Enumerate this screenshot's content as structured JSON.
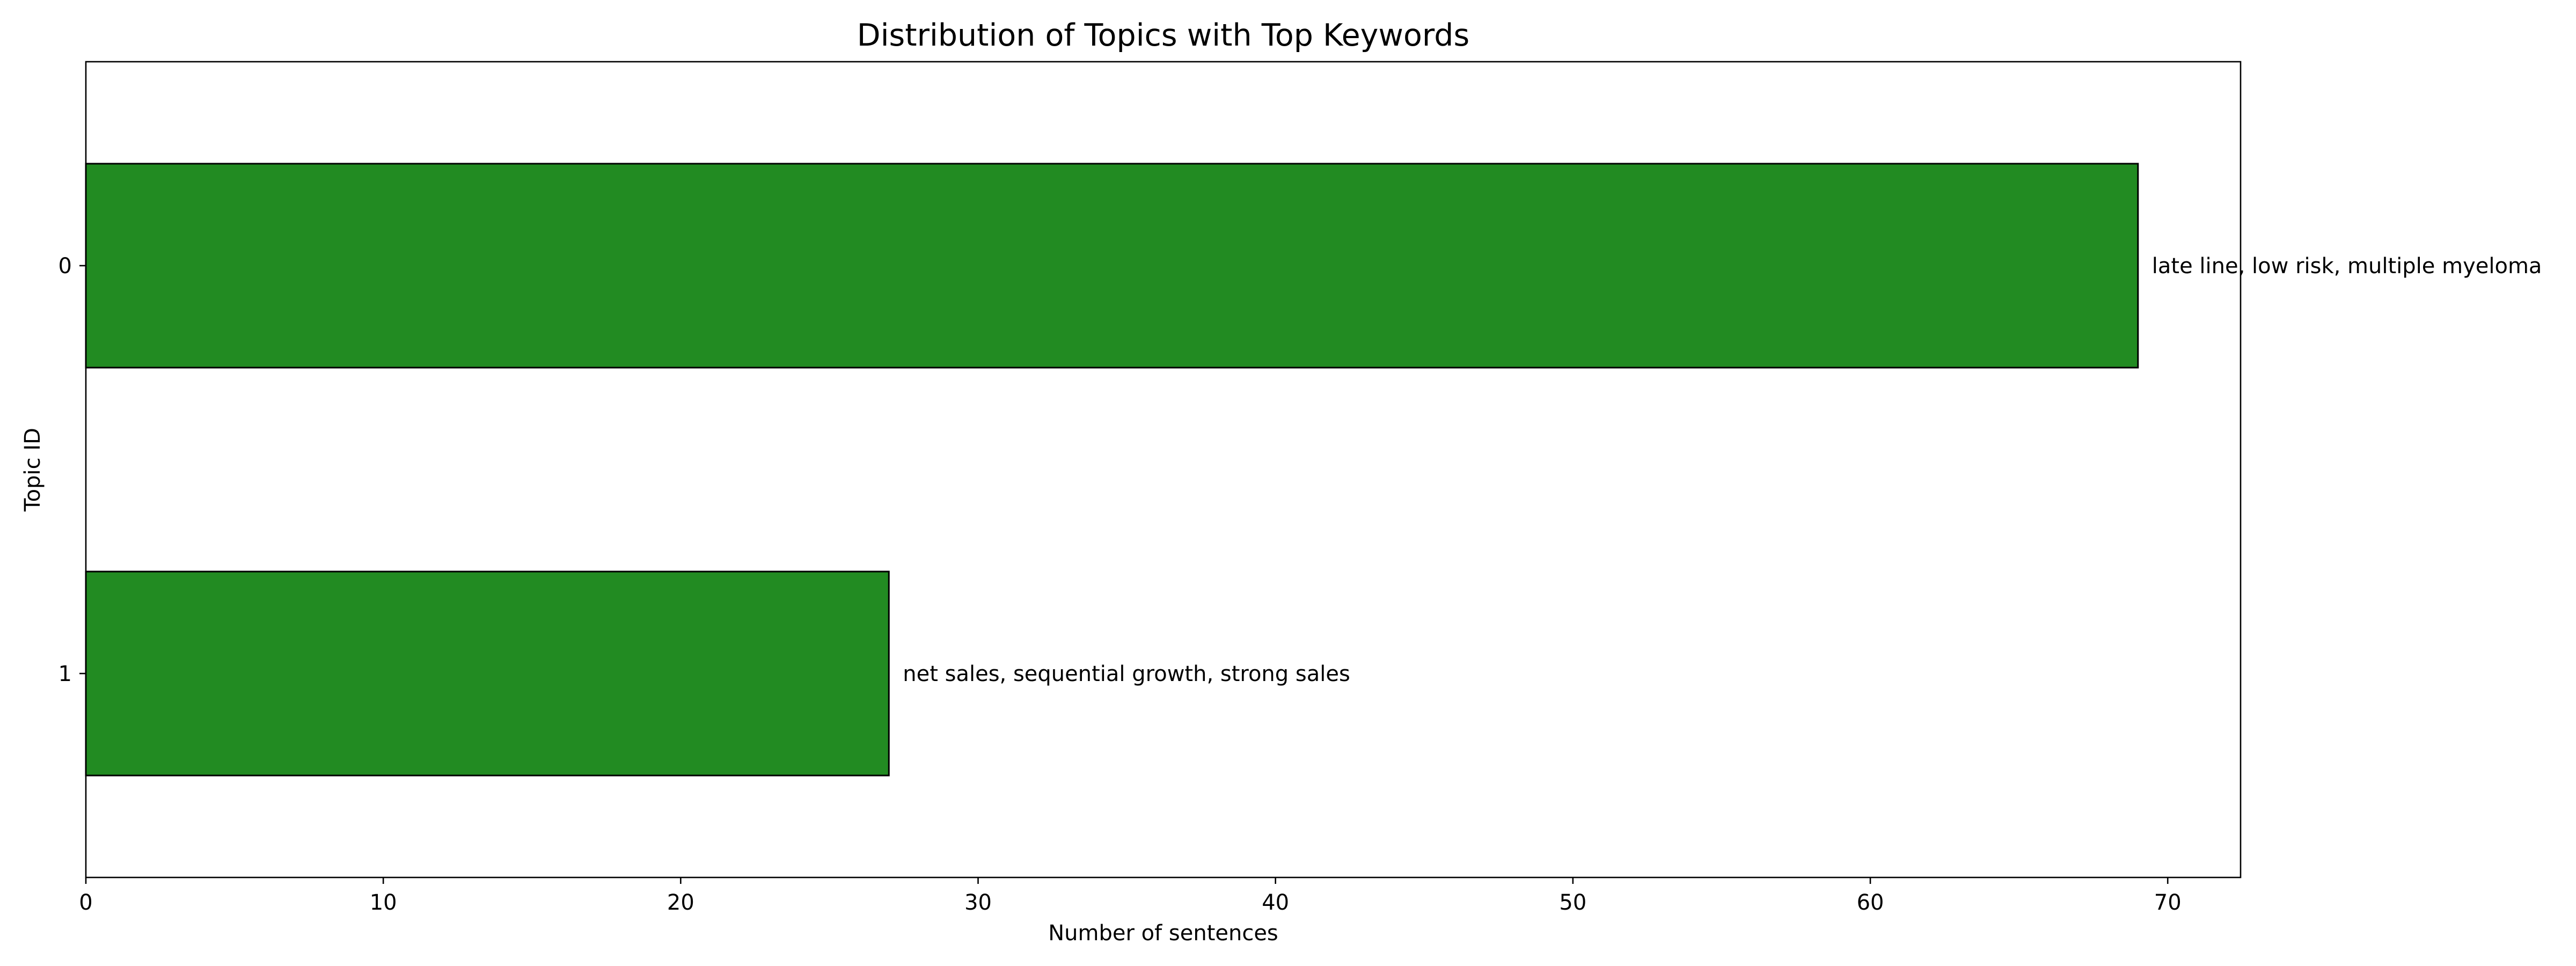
{
  "chart_data": {
    "type": "bar",
    "orientation": "horizontal",
    "title": "Distribution of Topics with Top Keywords",
    "xlabel": "Number of sentences",
    "ylabel": "Topic ID",
    "categories": [
      "0",
      "1"
    ],
    "values": [
      69,
      27
    ],
    "data_labels": [
      "late line, low risk, multiple myeloma",
      "net sales, sequential growth, strong sales"
    ],
    "xlim": [
      0,
      72.45
    ],
    "xticks": [
      0,
      10,
      20,
      30,
      40,
      50,
      60,
      70
    ],
    "grid": false,
    "legend": "none",
    "colors": {
      "bar": "#228b22",
      "edge": "#000000"
    }
  }
}
